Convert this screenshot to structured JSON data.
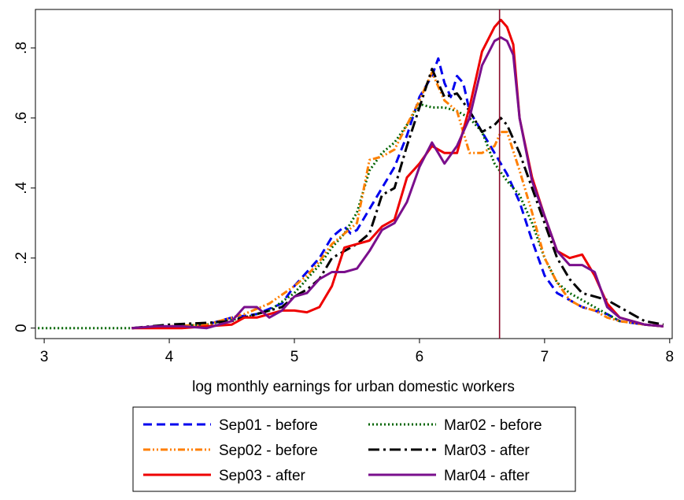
{
  "chart_data": {
    "type": "line",
    "title": "",
    "xlabel": "log monthly earnings for urban domestic workers",
    "ylabel": "",
    "xlim": [
      2.93,
      8.02
    ],
    "ylim": [
      -0.03,
      0.91
    ],
    "x_ticks": [
      3,
      4,
      5,
      6,
      7,
      8
    ],
    "x_tick_labels": [
      "3",
      "4",
      "5",
      "6",
      "7",
      "8"
    ],
    "y_ticks": [
      0,
      0.2,
      0.4,
      0.6,
      0.8
    ],
    "y_tick_labels": [
      "0",
      ".2",
      ".4",
      ".6",
      ".8"
    ],
    "grid": false,
    "legend_position": "bottom",
    "vertical_line": {
      "x": 6.64,
      "color": "#8b0a2a"
    },
    "series": [
      {
        "name": "Sep01 - before",
        "color": "#0000ee",
        "dash": "dash",
        "points": [
          [
            3.7,
            0.0
          ],
          [
            3.9,
            0.005
          ],
          [
            4.1,
            0.005
          ],
          [
            4.3,
            0.01
          ],
          [
            4.5,
            0.03
          ],
          [
            4.7,
            0.04
          ],
          [
            4.9,
            0.07
          ],
          [
            5.0,
            0.12
          ],
          [
            5.1,
            0.16
          ],
          [
            5.2,
            0.2
          ],
          [
            5.3,
            0.26
          ],
          [
            5.4,
            0.29
          ],
          [
            5.45,
            0.27
          ],
          [
            5.5,
            0.28
          ],
          [
            5.6,
            0.34
          ],
          [
            5.7,
            0.4
          ],
          [
            5.8,
            0.46
          ],
          [
            5.9,
            0.55
          ],
          [
            6.0,
            0.66
          ],
          [
            6.1,
            0.72
          ],
          [
            6.15,
            0.77
          ],
          [
            6.2,
            0.7
          ],
          [
            6.25,
            0.66
          ],
          [
            6.3,
            0.72
          ],
          [
            6.35,
            0.7
          ],
          [
            6.4,
            0.62
          ],
          [
            6.5,
            0.56
          ],
          [
            6.6,
            0.5
          ],
          [
            6.7,
            0.44
          ],
          [
            6.8,
            0.36
          ],
          [
            6.9,
            0.25
          ],
          [
            7.0,
            0.15
          ],
          [
            7.1,
            0.1
          ],
          [
            7.2,
            0.08
          ],
          [
            7.3,
            0.06
          ],
          [
            7.4,
            0.05
          ],
          [
            7.5,
            0.04
          ],
          [
            7.6,
            0.02
          ],
          [
            7.8,
            0.01
          ],
          [
            7.95,
            0.005
          ]
        ]
      },
      {
        "name": "Mar02 - before",
        "color": "#006400",
        "dash": "dot",
        "points": [
          [
            2.95,
            0.0
          ],
          [
            3.2,
            0.0
          ],
          [
            3.5,
            0.0
          ],
          [
            3.7,
            0.0
          ],
          [
            4.0,
            0.005
          ],
          [
            4.3,
            0.01
          ],
          [
            4.6,
            0.03
          ],
          [
            4.8,
            0.05
          ],
          [
            5.0,
            0.1
          ],
          [
            5.1,
            0.14
          ],
          [
            5.2,
            0.18
          ],
          [
            5.3,
            0.23
          ],
          [
            5.4,
            0.27
          ],
          [
            5.5,
            0.33
          ],
          [
            5.6,
            0.45
          ],
          [
            5.7,
            0.5
          ],
          [
            5.8,
            0.53
          ],
          [
            5.9,
            0.58
          ],
          [
            6.0,
            0.64
          ],
          [
            6.1,
            0.63
          ],
          [
            6.2,
            0.63
          ],
          [
            6.3,
            0.62
          ],
          [
            6.4,
            0.6
          ],
          [
            6.5,
            0.56
          ],
          [
            6.6,
            0.47
          ],
          [
            6.7,
            0.42
          ],
          [
            6.8,
            0.38
          ],
          [
            6.9,
            0.3
          ],
          [
            7.0,
            0.2
          ],
          [
            7.1,
            0.13
          ],
          [
            7.2,
            0.1
          ],
          [
            7.3,
            0.08
          ],
          [
            7.4,
            0.06
          ],
          [
            7.5,
            0.04
          ],
          [
            7.6,
            0.02
          ],
          [
            7.8,
            0.01
          ],
          [
            7.95,
            0.005
          ]
        ]
      },
      {
        "name": "Sep02 - before",
        "color": "#ff7f00",
        "dash": "dashdotdot",
        "points": [
          [
            3.7,
            0.0
          ],
          [
            4.0,
            0.005
          ],
          [
            4.3,
            0.01
          ],
          [
            4.6,
            0.04
          ],
          [
            4.8,
            0.07
          ],
          [
            5.0,
            0.12
          ],
          [
            5.1,
            0.15
          ],
          [
            5.2,
            0.19
          ],
          [
            5.3,
            0.24
          ],
          [
            5.4,
            0.27
          ],
          [
            5.5,
            0.3
          ],
          [
            5.6,
            0.48
          ],
          [
            5.7,
            0.49
          ],
          [
            5.8,
            0.51
          ],
          [
            5.9,
            0.58
          ],
          [
            6.0,
            0.65
          ],
          [
            6.1,
            0.73
          ],
          [
            6.2,
            0.65
          ],
          [
            6.3,
            0.62
          ],
          [
            6.4,
            0.5
          ],
          [
            6.5,
            0.5
          ],
          [
            6.6,
            0.52
          ],
          [
            6.65,
            0.56
          ],
          [
            6.7,
            0.56
          ],
          [
            6.8,
            0.45
          ],
          [
            6.9,
            0.33
          ],
          [
            7.0,
            0.2
          ],
          [
            7.1,
            0.13
          ],
          [
            7.2,
            0.08
          ],
          [
            7.3,
            0.06
          ],
          [
            7.4,
            0.05
          ],
          [
            7.5,
            0.03
          ],
          [
            7.6,
            0.02
          ],
          [
            7.8,
            0.01
          ],
          [
            7.95,
            0.005
          ]
        ]
      },
      {
        "name": "Mar03 - after",
        "color": "#000000",
        "dash": "longdashdot",
        "points": [
          [
            3.7,
            0.0
          ],
          [
            4.0,
            0.01
          ],
          [
            4.3,
            0.015
          ],
          [
            4.5,
            0.02
          ],
          [
            4.7,
            0.04
          ],
          [
            4.9,
            0.06
          ],
          [
            5.0,
            0.09
          ],
          [
            5.1,
            0.11
          ],
          [
            5.2,
            0.14
          ],
          [
            5.3,
            0.2
          ],
          [
            5.4,
            0.22
          ],
          [
            5.5,
            0.24
          ],
          [
            5.6,
            0.27
          ],
          [
            5.7,
            0.38
          ],
          [
            5.8,
            0.4
          ],
          [
            5.9,
            0.52
          ],
          [
            6.0,
            0.63
          ],
          [
            6.1,
            0.74
          ],
          [
            6.2,
            0.66
          ],
          [
            6.3,
            0.67
          ],
          [
            6.4,
            0.62
          ],
          [
            6.5,
            0.56
          ],
          [
            6.6,
            0.58
          ],
          [
            6.65,
            0.6
          ],
          [
            6.7,
            0.58
          ],
          [
            6.8,
            0.5
          ],
          [
            6.9,
            0.4
          ],
          [
            7.0,
            0.3
          ],
          [
            7.1,
            0.2
          ],
          [
            7.2,
            0.14
          ],
          [
            7.3,
            0.1
          ],
          [
            7.4,
            0.09
          ],
          [
            7.5,
            0.08
          ],
          [
            7.6,
            0.06
          ],
          [
            7.7,
            0.04
          ],
          [
            7.8,
            0.02
          ],
          [
            7.95,
            0.01
          ]
        ]
      },
      {
        "name": "Sep03 - after",
        "color": "#ee0000",
        "dash": "solid",
        "points": [
          [
            3.7,
            0.0
          ],
          [
            3.9,
            0.0
          ],
          [
            4.1,
            0.0
          ],
          [
            4.3,
            0.005
          ],
          [
            4.5,
            0.01
          ],
          [
            4.6,
            0.03
          ],
          [
            4.7,
            0.03
          ],
          [
            4.8,
            0.04
          ],
          [
            4.9,
            0.05
          ],
          [
            5.0,
            0.05
          ],
          [
            5.1,
            0.045
          ],
          [
            5.2,
            0.06
          ],
          [
            5.3,
            0.12
          ],
          [
            5.4,
            0.23
          ],
          [
            5.5,
            0.24
          ],
          [
            5.6,
            0.25
          ],
          [
            5.7,
            0.29
          ],
          [
            5.8,
            0.31
          ],
          [
            5.9,
            0.43
          ],
          [
            6.0,
            0.47
          ],
          [
            6.1,
            0.52
          ],
          [
            6.2,
            0.5
          ],
          [
            6.3,
            0.5
          ],
          [
            6.4,
            0.63
          ],
          [
            6.5,
            0.79
          ],
          [
            6.6,
            0.86
          ],
          [
            6.65,
            0.88
          ],
          [
            6.7,
            0.86
          ],
          [
            6.75,
            0.81
          ],
          [
            6.8,
            0.6
          ],
          [
            6.9,
            0.43
          ],
          [
            7.0,
            0.32
          ],
          [
            7.1,
            0.22
          ],
          [
            7.2,
            0.2
          ],
          [
            7.3,
            0.21
          ],
          [
            7.4,
            0.15
          ],
          [
            7.5,
            0.07
          ],
          [
            7.6,
            0.03
          ],
          [
            7.8,
            0.01
          ],
          [
            7.95,
            0.005
          ]
        ]
      },
      {
        "name": "Mar04 - after",
        "color": "#7a0f8c",
        "dash": "solid",
        "points": [
          [
            3.7,
            0.0
          ],
          [
            3.9,
            0.005
          ],
          [
            4.1,
            0.005
          ],
          [
            4.3,
            0.0
          ],
          [
            4.5,
            0.02
          ],
          [
            4.6,
            0.06
          ],
          [
            4.7,
            0.06
          ],
          [
            4.8,
            0.03
          ],
          [
            4.9,
            0.05
          ],
          [
            5.0,
            0.09
          ],
          [
            5.1,
            0.1
          ],
          [
            5.2,
            0.14
          ],
          [
            5.3,
            0.16
          ],
          [
            5.4,
            0.16
          ],
          [
            5.5,
            0.17
          ],
          [
            5.6,
            0.22
          ],
          [
            5.7,
            0.28
          ],
          [
            5.8,
            0.3
          ],
          [
            5.9,
            0.36
          ],
          [
            6.0,
            0.46
          ],
          [
            6.1,
            0.53
          ],
          [
            6.15,
            0.5
          ],
          [
            6.2,
            0.47
          ],
          [
            6.3,
            0.52
          ],
          [
            6.4,
            0.6
          ],
          [
            6.5,
            0.75
          ],
          [
            6.6,
            0.82
          ],
          [
            6.65,
            0.83
          ],
          [
            6.7,
            0.82
          ],
          [
            6.75,
            0.78
          ],
          [
            6.8,
            0.6
          ],
          [
            6.9,
            0.42
          ],
          [
            7.0,
            0.32
          ],
          [
            7.1,
            0.22
          ],
          [
            7.2,
            0.18
          ],
          [
            7.3,
            0.18
          ],
          [
            7.4,
            0.16
          ],
          [
            7.5,
            0.06
          ],
          [
            7.6,
            0.03
          ],
          [
            7.8,
            0.01
          ],
          [
            7.95,
            0.005
          ]
        ]
      }
    ],
    "legend": {
      "columns": [
        [
          "Sep01 - before",
          "Sep02 - before",
          "Sep03 - after"
        ],
        [
          "Mar02 - before",
          "Mar03 - after",
          "Mar04 - after"
        ]
      ]
    }
  }
}
